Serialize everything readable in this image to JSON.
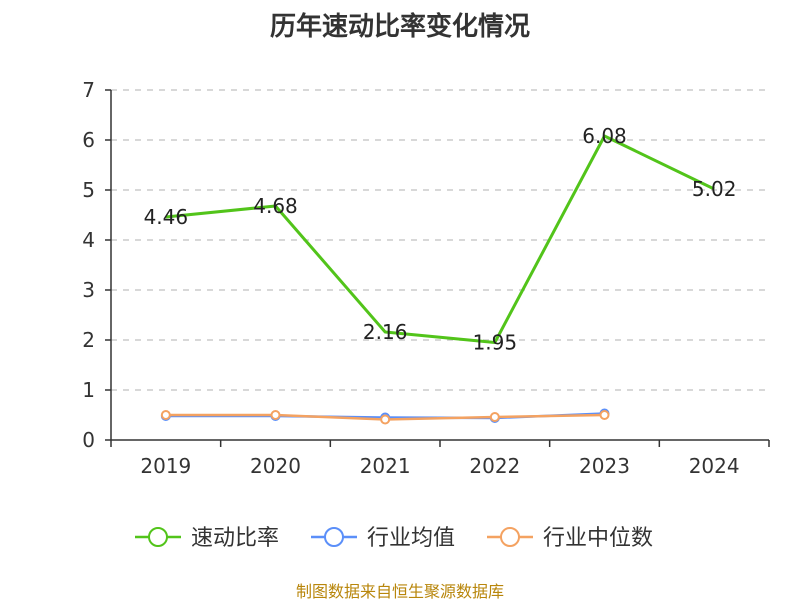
{
  "chart_data": {
    "type": "line",
    "title": "历年速动比率变化情况",
    "categories": [
      "2019",
      "2020",
      "2021",
      "2022",
      "2023",
      "2024"
    ],
    "series": [
      {
        "name": "速动比率",
        "color": "#52c41a",
        "values": [
          4.46,
          4.68,
          2.16,
          1.95,
          6.08,
          5.02
        ],
        "show_labels": true
      },
      {
        "name": "行业均值",
        "color": "#5b8ff9",
        "values": [
          0.48,
          0.48,
          0.45,
          0.44,
          0.53,
          null
        ]
      },
      {
        "name": "行业中位数",
        "color": "#f4a261",
        "values": [
          0.5,
          0.5,
          0.41,
          0.46,
          0.5,
          null
        ]
      }
    ],
    "yticks": [
      0,
      1,
      2,
      3,
      4,
      5,
      6,
      7
    ],
    "ylim": [
      0,
      7
    ],
    "grid": true,
    "legend": "bottom"
  },
  "source": "制图数据来自恒生聚源数据库"
}
